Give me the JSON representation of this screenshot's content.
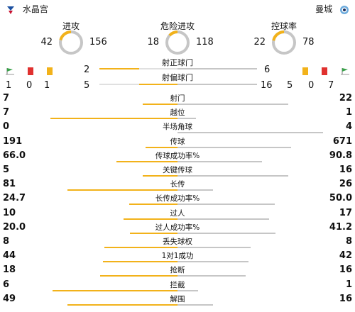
{
  "header": {
    "home_team": "水晶宫",
    "away_team": "曼城",
    "home_crest": "crystal-palace-crest-icon",
    "away_crest": "man-city-crest-icon"
  },
  "donuts": [
    {
      "title": "进攻",
      "home": "42",
      "away": "156",
      "home_value": 42,
      "away_value": 156
    },
    {
      "title": "危险进攻",
      "home": "18",
      "away": "118",
      "home_value": 18,
      "away_value": 118
    },
    {
      "title": "控球率",
      "home": "22",
      "away": "78",
      "home_value": 22,
      "away_value": 78
    }
  ],
  "shots": {
    "on_target_label": "射正球门",
    "off_target_label": "射偏球门",
    "home_on": "2",
    "away_on": "6",
    "home_off": "5",
    "away_off": "16",
    "home_corners": "1",
    "home_red": "0",
    "home_yellow": "1",
    "away_yellow": "5",
    "away_red": "0",
    "away_corners": "7"
  },
  "stats": [
    {
      "label": "射门",
      "home": "7",
      "away": "22",
      "hv": 7,
      "av": 22
    },
    {
      "label": "越位",
      "home": "7",
      "away": "1",
      "hv": 7,
      "av": 1
    },
    {
      "label": "半场角球",
      "home": "0",
      "away": "4",
      "hv": 0,
      "av": 4
    },
    {
      "label": "传球",
      "home": "191",
      "away": "671",
      "hv": 191,
      "av": 671
    },
    {
      "label": "传球成功率%",
      "home": "66.0",
      "away": "90.8",
      "hv": 66.0,
      "av": 90.8
    },
    {
      "label": "关键传球",
      "home": "5",
      "away": "16",
      "hv": 5,
      "av": 16
    },
    {
      "label": "长传",
      "home": "81",
      "away": "26",
      "hv": 81,
      "av": 26
    },
    {
      "label": "长传成功率%",
      "home": "24.7",
      "away": "50.0",
      "hv": 24.7,
      "av": 50.0
    },
    {
      "label": "过人",
      "home": "10",
      "away": "17",
      "hv": 10,
      "av": 17
    },
    {
      "label": "过人成功率%",
      "home": "20.0",
      "away": "41.2",
      "hv": 20.0,
      "av": 41.2
    },
    {
      "label": "丢失球权",
      "home": "8",
      "away": "8",
      "hv": 8,
      "av": 8
    },
    {
      "label": "1对1成功",
      "home": "44",
      "away": "42",
      "hv": 44,
      "av": 42
    },
    {
      "label": "抢断",
      "home": "18",
      "away": "16",
      "hv": 18,
      "av": 16
    },
    {
      "label": "拦截",
      "home": "6",
      "away": "1",
      "hv": 6,
      "av": 1
    },
    {
      "label": "解围",
      "home": "49",
      "away": "16",
      "hv": 49,
      "av": 16
    }
  ],
  "colors": {
    "home": "#f2b21a",
    "away": "#c6c6c6",
    "track": "#e0e0e0",
    "red_card": "#e0312f",
    "yellow_card": "#f2b21a"
  }
}
